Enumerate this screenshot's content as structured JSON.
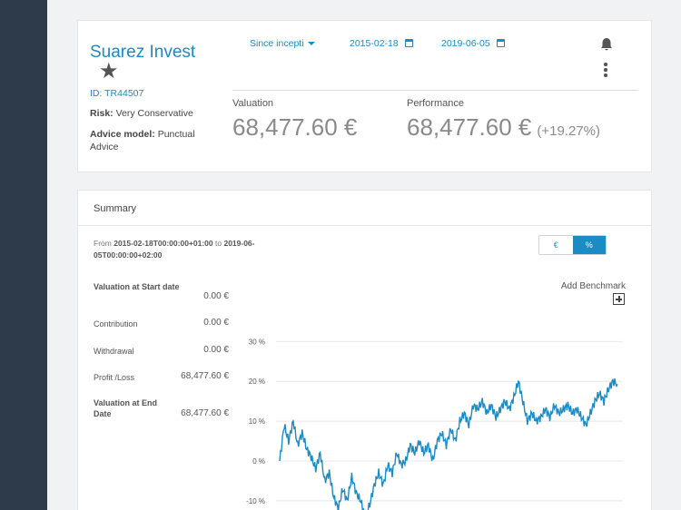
{
  "client": {
    "name": "Suarez Invest",
    "id": "ID: TR44507",
    "risk_label": "Risk:",
    "risk_value": "Very Conservative",
    "advice_label": "Advice model:",
    "advice_value": "Punctual Advice"
  },
  "filters": {
    "period": "Since incepti",
    "start_date": "2015-02-18",
    "end_date": "2019-06-05"
  },
  "metrics": {
    "valuation_label": "Valuation",
    "valuation_value": "68,477.60 €",
    "performance_label": "Performance",
    "performance_value": "68,477.60 €",
    "performance_pct": "(+19.27%)"
  },
  "summary": {
    "title": "Summary",
    "range_from": "From",
    "range_start": "2015-02-18T00:00:00+01:00",
    "range_to": "to",
    "range_end": "2019-06-05T00:00:00+02:00",
    "toggle_eur": "€",
    "toggle_pct": "%",
    "add_benchmark": "Add Benchmark",
    "stats": [
      {
        "label": "Valuation at Start date",
        "value": "0.00 €",
        "bold": true
      },
      {
        "label": "Contribution",
        "value": "0.00 €",
        "bold": false
      },
      {
        "label": "Withdrawal",
        "value": "0.00 €",
        "bold": false
      },
      {
        "label": "Profit /Loss",
        "value": "68,477.60 €",
        "bold": false
      },
      {
        "label": "Valuation at End Date",
        "value": "68,477.60 €",
        "bold": true
      }
    ]
  },
  "colors": {
    "accent": "#1a8bc4",
    "sidebar": "#2e3b4a",
    "line": "#1a8bc4"
  },
  "chart_data": {
    "type": "line",
    "x_start": "2015-02-18",
    "x_end": "2019-06-05",
    "y_tick_labels": [
      "30 %",
      "20 %",
      "10 %",
      "0 %",
      "-10 %"
    ],
    "y_ticks": [
      30,
      20,
      10,
      0,
      -10
    ],
    "ylim": [
      -13,
      36
    ],
    "grid": true,
    "series": [
      {
        "values": [
          0,
          9,
          5,
          10,
          4,
          7,
          3,
          1,
          -2,
          2,
          -5,
          -3,
          -9,
          -12,
          -7,
          -10,
          -4,
          -8,
          -10,
          -14,
          -11,
          -6,
          -3,
          -6,
          -1,
          -3,
          2,
          -1,
          0,
          4,
          2,
          5,
          2,
          4,
          0,
          5,
          7,
          4,
          8,
          5,
          10,
          12,
          9,
          14,
          13,
          15,
          12,
          14,
          11,
          13,
          15,
          13,
          16,
          20,
          15,
          10,
          12,
          10,
          11,
          13,
          11,
          14,
          12,
          13,
          14,
          12,
          13,
          11,
          9,
          12,
          15,
          17,
          15,
          18,
          20,
          19.3
        ]
      }
    ]
  }
}
